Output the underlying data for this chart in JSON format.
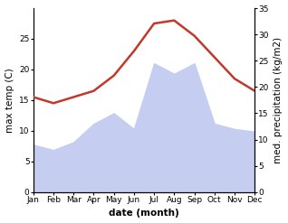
{
  "months": [
    "Jan",
    "Feb",
    "Mar",
    "Apr",
    "May",
    "Jun",
    "Jul",
    "Aug",
    "Sep",
    "Oct",
    "Nov",
    "Dec"
  ],
  "max_temp": [
    15.5,
    14.5,
    15.5,
    16.5,
    19.0,
    23.0,
    27.5,
    28.0,
    25.5,
    22.0,
    18.5,
    16.5
  ],
  "precipitation": [
    9.0,
    8.0,
    9.5,
    13.0,
    15.0,
    12.0,
    24.5,
    22.5,
    24.5,
    13.0,
    12.0,
    11.5
  ],
  "temp_color": "#c0392b",
  "precip_fill_color": "#c5cef0",
  "temp_ylim": [
    0,
    30
  ],
  "temp_yticks": [
    0,
    5,
    10,
    15,
    20,
    25
  ],
  "precip_ylim": [
    0,
    35
  ],
  "precip_yticks": [
    0,
    5,
    10,
    15,
    20,
    25,
    30,
    35
  ],
  "xlabel": "date (month)",
  "ylabel_left": "max temp (C)",
  "ylabel_right": "med. precipitation (kg/m2)",
  "label_fontsize": 7.5,
  "tick_fontsize": 6.5
}
